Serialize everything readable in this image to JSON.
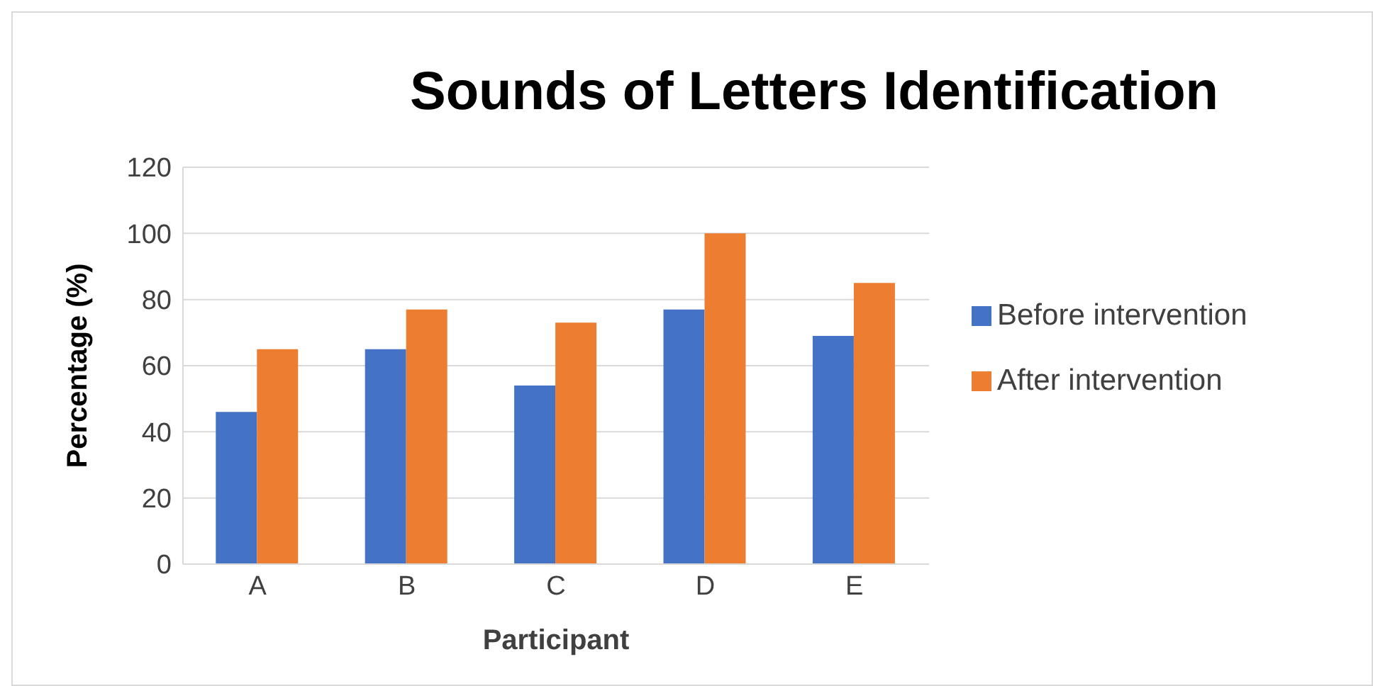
{
  "chart_data": {
    "type": "bar",
    "title": "Sounds of Letters Identification",
    "xlabel": "Participant",
    "ylabel": "Percentage (%)",
    "categories": [
      "A",
      "B",
      "C",
      "D",
      "E"
    ],
    "series": [
      {
        "name": "Before intervention",
        "color": "#4472c4",
        "values": [
          46,
          65,
          54,
          77,
          69
        ]
      },
      {
        "name": "After intervention",
        "color": "#ed7d31",
        "values": [
          65,
          77,
          73,
          100,
          85
        ]
      }
    ],
    "ylim": [
      0,
      120
    ],
    "yticks": [
      0,
      20,
      40,
      60,
      80,
      100,
      120
    ],
    "grid": "y",
    "legend": "right"
  }
}
